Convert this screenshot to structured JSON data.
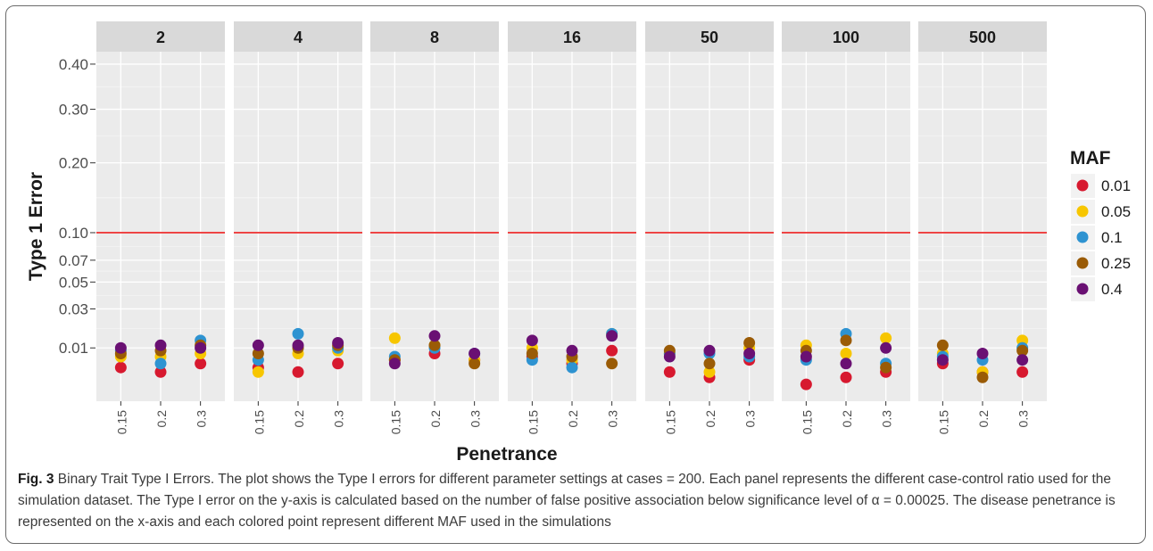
{
  "chart_data": {
    "type": "scatter",
    "ylabel": "Type 1 Error",
    "xlabel": "Penetrance",
    "facets": [
      "2",
      "4",
      "8",
      "16",
      "50",
      "100",
      "500"
    ],
    "categories": [
      "0.15",
      "0.2",
      "0.3"
    ],
    "yticks": [
      0.01,
      0.03,
      0.05,
      0.07,
      0.1,
      0.2,
      0.3,
      0.4
    ],
    "ytick_labels": [
      "0.01",
      "0.03",
      "0.05",
      "0.07",
      "0.10",
      "0.20",
      "0.30",
      "0.40"
    ],
    "ylim": [
      0,
      0.43
    ],
    "y_scale": "sqrt",
    "reference_line": 0.1,
    "reference_line_color": "#ee3b3b",
    "panel_background": "#ebebeb",
    "strip_background": "#d9d9d9",
    "grid": true,
    "legend_title": "MAF",
    "legend_position": "right",
    "series": [
      {
        "name": "0.01",
        "color": "#d7192f",
        "values": [
          [
            0.004,
            0.003,
            0.005
          ],
          [
            0.004,
            0.003,
            0.005
          ],
          [
            0.006,
            0.008,
            0.006
          ],
          [
            0.007,
            0.005,
            0.009
          ],
          [
            0.003,
            0.002,
            0.006
          ],
          [
            0.001,
            0.002,
            0.003
          ],
          [
            0.005,
            0.003,
            0.003
          ]
        ]
      },
      {
        "name": "0.05",
        "color": "#f7c600",
        "values": [
          [
            0.007,
            0.007,
            0.008
          ],
          [
            0.003,
            0.008,
            0.009
          ],
          [
            0.014,
            0.011,
            0.006
          ],
          [
            0.01,
            0.006,
            0.016
          ],
          [
            0.008,
            0.003,
            0.01
          ],
          [
            0.011,
            0.008,
            0.014
          ],
          [
            0.008,
            0.003,
            0.013
          ]
        ]
      },
      {
        "name": "0.1",
        "color": "#2e93d1",
        "values": [
          [
            0.009,
            0.005,
            0.013
          ],
          [
            0.006,
            0.016,
            0.01
          ],
          [
            0.007,
            0.01,
            0.008
          ],
          [
            0.006,
            0.004,
            0.016
          ],
          [
            0.008,
            0.008,
            0.007
          ],
          [
            0.006,
            0.016,
            0.005
          ],
          [
            0.007,
            0.006,
            0.01
          ]
        ]
      },
      {
        "name": "0.25",
        "color": "#9a5b06",
        "values": [
          [
            0.008,
            0.009,
            0.011
          ],
          [
            0.008,
            0.01,
            0.011
          ],
          [
            0.006,
            0.011,
            0.005
          ],
          [
            0.008,
            0.007,
            0.005
          ],
          [
            0.009,
            0.005,
            0.012
          ],
          [
            0.009,
            0.013,
            0.004
          ],
          [
            0.011,
            0.002,
            0.009
          ]
        ]
      },
      {
        "name": "0.4",
        "color": "#6a1073",
        "values": [
          [
            0.01,
            0.011,
            0.01
          ],
          [
            0.011,
            0.011,
            0.012
          ],
          [
            0.005,
            0.015,
            0.008
          ],
          [
            0.013,
            0.009,
            0.015
          ],
          [
            0.007,
            0.009,
            0.008
          ],
          [
            0.007,
            0.005,
            0.01
          ],
          [
            0.006,
            0.008,
            0.006
          ]
        ]
      }
    ]
  },
  "caption": {
    "label": "Fig. 3",
    "text": " Binary Trait Type I Errors. The plot shows the Type I errors for different parameter settings at cases = 200. Each panel represents the different case-control ratio used for the simulation dataset. The Type I error on the y-axis is calculated based on the number of false positive association below significance level of α = 0.00025. The disease penetrance is represented on the x-axis and each colored point represent different MAF used in the simulations"
  }
}
